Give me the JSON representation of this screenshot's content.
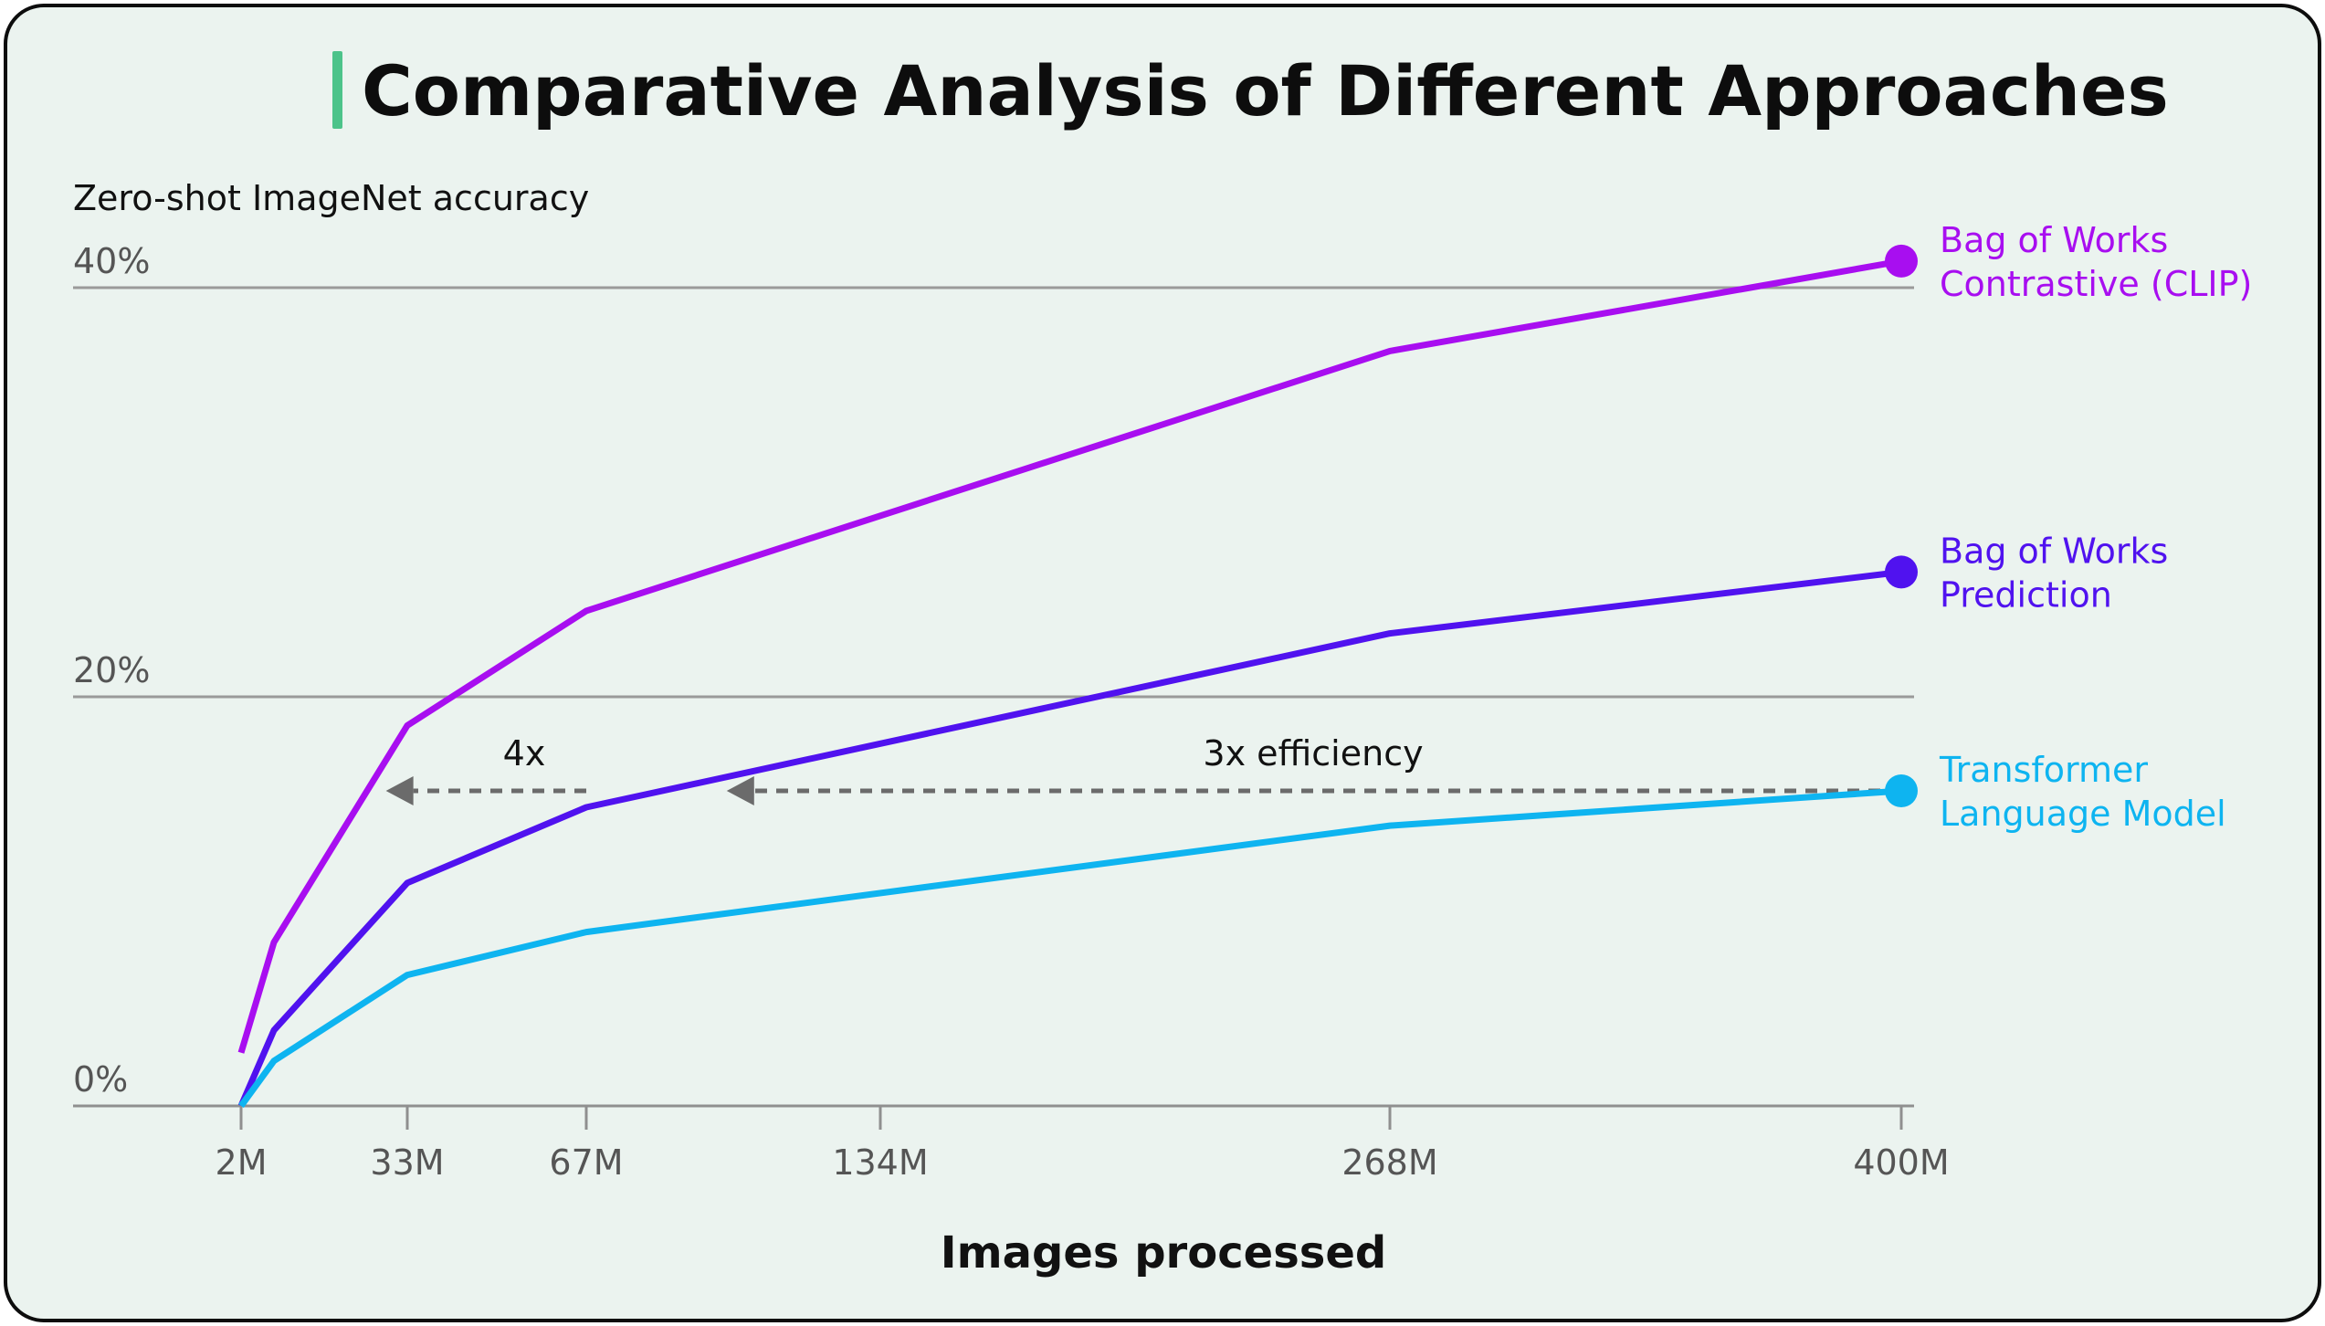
{
  "chart_data": {
    "type": "line",
    "title": "Comparative Analysis of Different Approaches",
    "ylabel": "Zero-shot ImageNet accuracy",
    "xlabel": "Images processed",
    "x_ticks": [
      "2M",
      "33M",
      "67M",
      "134M",
      "268M",
      "400M"
    ],
    "y_ticks": [
      "0%",
      "20%",
      "40%"
    ],
    "xlim": [
      2,
      400
    ],
    "ylim": [
      0,
      40
    ],
    "grid": true,
    "accent_color": "#4cc38a",
    "series": [
      {
        "name": "Bag of Works Contrastive (CLIP)",
        "label_lines": [
          "Bag of Works",
          "Contrastive (CLIP)"
        ],
        "color": "#a80ef0",
        "points": [
          [
            2,
            2.6
          ],
          [
            8,
            8.0
          ],
          [
            33,
            18.6
          ],
          [
            67,
            24.2
          ],
          [
            268,
            36.9
          ],
          [
            400,
            41.3
          ]
        ]
      },
      {
        "name": "Bag of Works Prediction",
        "label_lines": [
          "Bag of Works",
          "Prediction"
        ],
        "color": "#5012ef",
        "points": [
          [
            2,
            0.0
          ],
          [
            8,
            3.7
          ],
          [
            33,
            10.9
          ],
          [
            67,
            14.6
          ],
          [
            268,
            23.1
          ],
          [
            400,
            26.1
          ]
        ]
      },
      {
        "name": "Transformer Language Model",
        "label_lines": [
          "Transformer",
          "Language Model"
        ],
        "color": "#0eb4f0",
        "points": [
          [
            2,
            0.0
          ],
          [
            8,
            2.2
          ],
          [
            33,
            6.4
          ],
          [
            67,
            8.5
          ],
          [
            268,
            13.7
          ],
          [
            400,
            15.4
          ]
        ]
      }
    ],
    "annotations": [
      {
        "text": "4x",
        "y": 15.4,
        "x_from": 67,
        "x_to": 29
      },
      {
        "text": "3x efficiency",
        "y": 15.4,
        "x_from": 400,
        "x_to": 99
      }
    ]
  }
}
